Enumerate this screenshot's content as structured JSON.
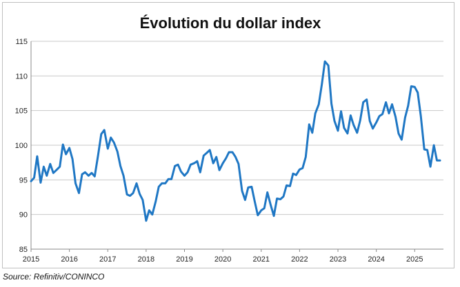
{
  "chart_data": {
    "type": "line",
    "title": "Évolution du dollar index",
    "xlabel": "",
    "ylabel": "",
    "ylim": [
      85,
      115
    ],
    "y_ticks": [
      "85",
      "90",
      "95",
      "100",
      "105",
      "110",
      "115"
    ],
    "x_ticks": [
      "2015",
      "2016",
      "2017",
      "2018",
      "2019",
      "2020",
      "2021",
      "2022",
      "2023",
      "2024",
      "2025"
    ],
    "grid": "horizontal",
    "legend": "none",
    "color": "#1f77c4",
    "series": [
      {
        "name": "",
        "points": [
          [
            2015.0,
            94.8
          ],
          [
            2015.08,
            95.3
          ],
          [
            2015.16,
            98.4
          ],
          [
            2015.25,
            94.6
          ],
          [
            2015.33,
            96.9
          ],
          [
            2015.41,
            95.6
          ],
          [
            2015.5,
            97.3
          ],
          [
            2015.58,
            96.0
          ],
          [
            2015.66,
            96.4
          ],
          [
            2015.75,
            96.9
          ],
          [
            2015.83,
            100.1
          ],
          [
            2015.91,
            98.7
          ],
          [
            2016.0,
            99.6
          ],
          [
            2016.08,
            98.0
          ],
          [
            2016.16,
            94.5
          ],
          [
            2016.25,
            93.1
          ],
          [
            2016.33,
            95.8
          ],
          [
            2016.41,
            96.1
          ],
          [
            2016.5,
            95.6
          ],
          [
            2016.58,
            96.0
          ],
          [
            2016.66,
            95.5
          ],
          [
            2016.75,
            98.6
          ],
          [
            2016.83,
            101.6
          ],
          [
            2016.91,
            102.2
          ],
          [
            2017.0,
            99.5
          ],
          [
            2017.08,
            101.1
          ],
          [
            2017.16,
            100.4
          ],
          [
            2017.25,
            99.1
          ],
          [
            2017.33,
            97.0
          ],
          [
            2017.41,
            95.6
          ],
          [
            2017.5,
            92.9
          ],
          [
            2017.58,
            92.7
          ],
          [
            2017.66,
            93.1
          ],
          [
            2017.75,
            94.5
          ],
          [
            2017.83,
            93.0
          ],
          [
            2017.91,
            92.1
          ],
          [
            2018.0,
            89.1
          ],
          [
            2018.08,
            90.6
          ],
          [
            2018.16,
            90.0
          ],
          [
            2018.25,
            91.9
          ],
          [
            2018.33,
            94.0
          ],
          [
            2018.41,
            94.5
          ],
          [
            2018.5,
            94.5
          ],
          [
            2018.58,
            95.1
          ],
          [
            2018.66,
            95.1
          ],
          [
            2018.75,
            97.0
          ],
          [
            2018.83,
            97.2
          ],
          [
            2018.91,
            96.2
          ],
          [
            2019.0,
            95.6
          ],
          [
            2019.08,
            96.1
          ],
          [
            2019.16,
            97.2
          ],
          [
            2019.25,
            97.4
          ],
          [
            2019.33,
            97.7
          ],
          [
            2019.41,
            96.1
          ],
          [
            2019.5,
            98.5
          ],
          [
            2019.58,
            98.9
          ],
          [
            2019.66,
            99.3
          ],
          [
            2019.75,
            97.4
          ],
          [
            2019.83,
            98.3
          ],
          [
            2019.91,
            96.4
          ],
          [
            2020.0,
            97.4
          ],
          [
            2020.08,
            98.1
          ],
          [
            2020.16,
            99.0
          ],
          [
            2020.25,
            99.0
          ],
          [
            2020.33,
            98.3
          ],
          [
            2020.41,
            97.3
          ],
          [
            2020.5,
            93.4
          ],
          [
            2020.58,
            92.1
          ],
          [
            2020.66,
            93.9
          ],
          [
            2020.75,
            94.0
          ],
          [
            2020.83,
            91.9
          ],
          [
            2020.91,
            89.9
          ],
          [
            2021.0,
            90.6
          ],
          [
            2021.08,
            90.9
          ],
          [
            2021.16,
            93.2
          ],
          [
            2021.25,
            91.3
          ],
          [
            2021.33,
            89.8
          ],
          [
            2021.41,
            92.3
          ],
          [
            2021.5,
            92.2
          ],
          [
            2021.58,
            92.6
          ],
          [
            2021.66,
            94.2
          ],
          [
            2021.75,
            94.1
          ],
          [
            2021.83,
            95.9
          ],
          [
            2021.91,
            95.7
          ],
          [
            2022.0,
            96.5
          ],
          [
            2022.08,
            96.7
          ],
          [
            2022.16,
            98.3
          ],
          [
            2022.25,
            103.0
          ],
          [
            2022.33,
            101.8
          ],
          [
            2022.41,
            104.6
          ],
          [
            2022.5,
            105.9
          ],
          [
            2022.58,
            108.8
          ],
          [
            2022.66,
            112.1
          ],
          [
            2022.75,
            111.5
          ],
          [
            2022.83,
            106.0
          ],
          [
            2022.91,
            103.5
          ],
          [
            2023.0,
            102.1
          ],
          [
            2023.08,
            104.9
          ],
          [
            2023.16,
            102.5
          ],
          [
            2023.25,
            101.7
          ],
          [
            2023.33,
            104.3
          ],
          [
            2023.41,
            102.9
          ],
          [
            2023.5,
            101.8
          ],
          [
            2023.58,
            103.6
          ],
          [
            2023.66,
            106.2
          ],
          [
            2023.75,
            106.6
          ],
          [
            2023.83,
            103.5
          ],
          [
            2023.91,
            102.4
          ],
          [
            2024.0,
            103.3
          ],
          [
            2024.08,
            104.2
          ],
          [
            2024.16,
            104.5
          ],
          [
            2024.25,
            106.2
          ],
          [
            2024.33,
            104.6
          ],
          [
            2024.41,
            105.9
          ],
          [
            2024.5,
            104.1
          ],
          [
            2024.58,
            101.7
          ],
          [
            2024.66,
            100.8
          ],
          [
            2024.75,
            104.0
          ],
          [
            2024.83,
            105.7
          ],
          [
            2024.91,
            108.5
          ],
          [
            2025.0,
            108.4
          ],
          [
            2025.08,
            107.6
          ],
          [
            2025.16,
            104.2
          ],
          [
            2025.25,
            99.4
          ],
          [
            2025.33,
            99.3
          ],
          [
            2025.41,
            96.9
          ],
          [
            2025.5,
            100.0
          ],
          [
            2025.58,
            97.8
          ],
          [
            2025.66,
            97.8
          ]
        ]
      }
    ]
  },
  "source": "Source: Refinitiv/CONINCO"
}
